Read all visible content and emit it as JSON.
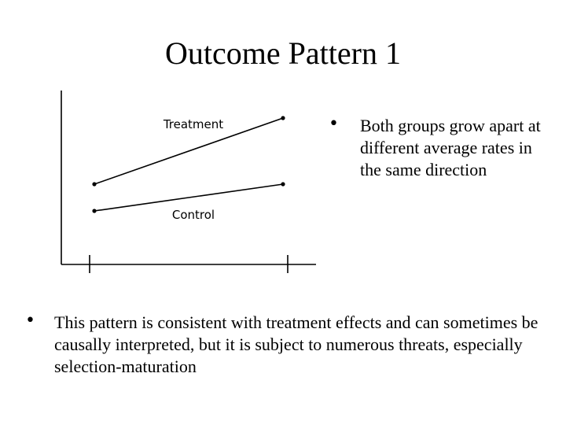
{
  "slide": {
    "title": "Outcome Pattern 1"
  },
  "diagram": {
    "treatment_label": "Treatment",
    "control_label": "Control"
  },
  "bullets": {
    "side": {
      "marker": "•",
      "text": "Both groups grow apart at different average rates in the same direction"
    },
    "bottom": {
      "marker": "•",
      "text": "This pattern is consistent with treatment effects and can sometimes be causally interpreted, but it is subject to numerous threats, especially selection-maturation"
    }
  }
}
